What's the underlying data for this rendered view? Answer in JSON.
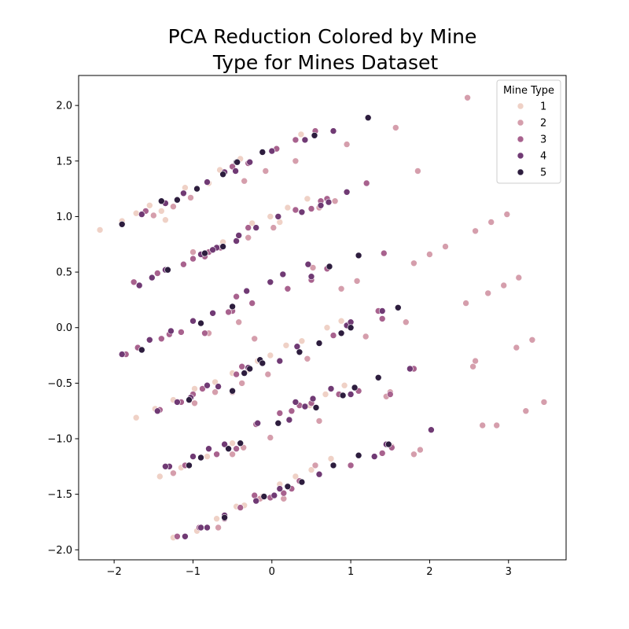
{
  "chart_data": {
    "type": "scatter",
    "title_lines": [
      "PCA Reduction Colored by Mine",
      "Type for Mines Dataset"
    ],
    "xlabel": "",
    "ylabel": "",
    "xlim": [
      -2.45,
      3.73
    ],
    "ylim": [
      -2.09,
      2.27
    ],
    "x_ticks": [
      -2,
      -1,
      0,
      1,
      2,
      3
    ],
    "y_ticks": [
      -2.0,
      -1.5,
      -1.0,
      -0.5,
      0.0,
      0.5,
      1.0,
      1.5,
      2.0
    ],
    "grid": false,
    "legend": {
      "title": "Mine Type",
      "placement": "top-right",
      "entries": [
        "1",
        "2",
        "3",
        "4",
        "5"
      ]
    },
    "colors": {
      "1": "#efd1c6",
      "2": "#d59eac",
      "3": "#a8628e",
      "4": "#703a74",
      "5": "#2d1d3e"
    },
    "series": [
      {
        "name": "1",
        "points": [
          [
            -2.18,
            0.88
          ],
          [
            -1.9,
            0.96
          ],
          [
            -1.72,
            1.03
          ],
          [
            -1.55,
            1.1
          ],
          [
            -1.4,
            1.05
          ],
          [
            -1.1,
            1.26
          ],
          [
            -0.8,
            1.3
          ],
          [
            -0.66,
            1.42
          ],
          [
            -0.4,
            1.52
          ],
          [
            -0.12,
            1.58
          ],
          [
            0.37,
            1.74
          ],
          [
            -0.62,
            0.77
          ],
          [
            -0.25,
            0.94
          ],
          [
            -0.02,
            1.0
          ],
          [
            0.2,
            1.08
          ],
          [
            0.45,
            1.16
          ],
          [
            -1.72,
            -0.81
          ],
          [
            -1.48,
            -0.73
          ],
          [
            -1.25,
            -0.65
          ],
          [
            -0.98,
            -0.55
          ],
          [
            -0.72,
            -0.49
          ],
          [
            -0.5,
            -0.41
          ],
          [
            -0.18,
            -0.3
          ],
          [
            -0.02,
            -0.25
          ],
          [
            0.18,
            -0.16
          ],
          [
            0.38,
            -0.12
          ],
          [
            0.7,
            0.0
          ],
          [
            0.88,
            0.06
          ],
          [
            0.48,
            -0.7
          ],
          [
            0.68,
            -0.6
          ],
          [
            0.92,
            -0.52
          ],
          [
            -1.42,
            -1.34
          ],
          [
            -1.15,
            -1.26
          ],
          [
            -0.82,
            -1.16
          ],
          [
            -0.56,
            -1.08
          ],
          [
            -0.5,
            -1.04
          ],
          [
            0.1,
            -1.41
          ],
          [
            0.3,
            -1.34
          ],
          [
            0.5,
            -1.28
          ],
          [
            0.75,
            -1.18
          ],
          [
            -1.25,
            -1.89
          ],
          [
            -0.95,
            -1.83
          ],
          [
            -0.7,
            -1.72
          ],
          [
            -0.45,
            -1.61
          ],
          [
            -0.12,
            -1.52
          ],
          [
            -0.35,
            -1.6
          ],
          [
            0.1,
            0.95
          ],
          [
            -1.35,
            0.97
          ],
          [
            -0.3,
            -0.38
          ]
        ]
      },
      {
        "name": "2",
        "points": [
          [
            -1.5,
            1.01
          ],
          [
            -1.25,
            1.09
          ],
          [
            -1.03,
            1.17
          ],
          [
            -0.35,
            1.32
          ],
          [
            -0.08,
            1.41
          ],
          [
            0.3,
            1.5
          ],
          [
            0.95,
            1.65
          ],
          [
            1.57,
            1.8
          ],
          [
            1.85,
            1.41
          ],
          [
            2.48,
            2.07
          ],
          [
            -0.45,
            0.78
          ],
          [
            -0.3,
            0.81
          ],
          [
            0.02,
            0.9
          ],
          [
            0.6,
            1.08
          ],
          [
            0.8,
            1.14
          ],
          [
            0.52,
            0.54
          ],
          [
            0.88,
            0.35
          ],
          [
            1.08,
            0.42
          ],
          [
            1.8,
            0.58
          ],
          [
            2.0,
            0.66
          ],
          [
            2.2,
            0.73
          ],
          [
            2.58,
            0.87
          ],
          [
            2.78,
            0.95
          ],
          [
            2.98,
            1.02
          ],
          [
            1.19,
            -0.08
          ],
          [
            1.7,
            0.05
          ],
          [
            2.46,
            0.22
          ],
          [
            2.74,
            0.31
          ],
          [
            2.94,
            0.38
          ],
          [
            3.13,
            0.45
          ],
          [
            -0.42,
            0.05
          ],
          [
            -0.22,
            -0.1
          ],
          [
            -0.05,
            -0.42
          ],
          [
            0.45,
            -0.28
          ],
          [
            -1.0,
            0.68
          ],
          [
            -0.8,
            -0.05
          ],
          [
            -0.5,
            -0.58
          ],
          [
            -0.38,
            -0.5
          ],
          [
            -0.72,
            -0.58
          ],
          [
            -0.98,
            -0.68
          ],
          [
            1.45,
            -0.62
          ],
          [
            1.5,
            -0.58
          ],
          [
            2.55,
            -0.35
          ],
          [
            2.58,
            -0.3
          ],
          [
            3.1,
            -0.18
          ],
          [
            3.3,
            -0.11
          ],
          [
            3.45,
            -0.67
          ],
          [
            3.22,
            -0.75
          ],
          [
            2.67,
            -0.88
          ],
          [
            2.85,
            -0.88
          ],
          [
            0.6,
            -0.84
          ],
          [
            -0.36,
            -1.08
          ],
          [
            -0.02,
            -0.99
          ],
          [
            -1.25,
            -1.31
          ],
          [
            -0.5,
            -1.14
          ],
          [
            0.55,
            -1.24
          ],
          [
            1.8,
            -1.14
          ],
          [
            1.88,
            -1.1
          ],
          [
            1.52,
            -1.07
          ],
          [
            -0.15,
            -1.54
          ],
          [
            0.15,
            -1.54
          ],
          [
            -0.68,
            -1.8
          ]
        ]
      },
      {
        "name": "3",
        "points": [
          [
            -1.6,
            1.05
          ],
          [
            -0.5,
            1.45
          ],
          [
            -0.3,
            1.48
          ],
          [
            0.06,
            1.61
          ],
          [
            0.3,
            1.69
          ],
          [
            0.55,
            1.77
          ],
          [
            1.2,
            1.3
          ],
          [
            -1.0,
            0.62
          ],
          [
            -0.65,
            0.72
          ],
          [
            -0.3,
            0.9
          ],
          [
            0.3,
            1.06
          ],
          [
            0.5,
            1.07
          ],
          [
            0.7,
            1.16
          ],
          [
            0.62,
            1.14
          ],
          [
            -1.75,
            0.41
          ],
          [
            -1.45,
            0.49
          ],
          [
            -1.12,
            0.57
          ],
          [
            -0.85,
            0.64
          ],
          [
            -0.8,
            0.68
          ],
          [
            -0.65,
            0.72
          ],
          [
            -1.15,
            -0.04
          ],
          [
            -1.3,
            -0.06
          ],
          [
            -0.85,
            -0.05
          ],
          [
            -0.5,
            0.15
          ],
          [
            -0.25,
            0.22
          ],
          [
            -0.45,
            0.28
          ],
          [
            0.2,
            0.35
          ],
          [
            0.5,
            0.43
          ],
          [
            0.7,
            0.53
          ],
          [
            0.78,
            -0.07
          ],
          [
            1.4,
            0.08
          ],
          [
            1.42,
            0.67
          ],
          [
            1.35,
            0.15
          ],
          [
            -1.85,
            -0.24
          ],
          [
            -1.7,
            -0.18
          ],
          [
            -1.4,
            -0.1
          ],
          [
            -0.55,
            0.14
          ],
          [
            -0.38,
            -0.35
          ],
          [
            0.85,
            -0.6
          ],
          [
            1.1,
            -0.57
          ],
          [
            1.5,
            -0.6
          ],
          [
            1.8,
            -0.37
          ],
          [
            0.35,
            -0.7
          ],
          [
            -1.42,
            -0.74
          ],
          [
            -1.15,
            -0.67
          ],
          [
            -0.88,
            -0.55
          ],
          [
            -1.0,
            -0.6
          ],
          [
            -0.45,
            -0.42
          ],
          [
            0.25,
            -0.75
          ],
          [
            -1.1,
            -1.24
          ],
          [
            -0.7,
            -1.14
          ],
          [
            -0.45,
            -1.09
          ],
          [
            -0.2,
            -0.87
          ],
          [
            0.1,
            -0.77
          ],
          [
            0.5,
            -0.68
          ],
          [
            -0.4,
            -1.62
          ],
          [
            -0.22,
            -1.51
          ],
          [
            -0.02,
            -1.53
          ],
          [
            0.15,
            -1.49
          ],
          [
            0.25,
            -1.45
          ],
          [
            0.35,
            -1.38
          ],
          [
            1.4,
            -1.13
          ],
          [
            1.52,
            -1.08
          ],
          [
            1.0,
            -1.24
          ],
          [
            -1.2,
            -1.88
          ],
          [
            -0.92,
            -1.8
          ],
          [
            -0.6,
            -1.72
          ]
        ]
      },
      {
        "name": "4",
        "points": [
          [
            -1.65,
            1.02
          ],
          [
            -1.35,
            1.12
          ],
          [
            -1.12,
            1.21
          ],
          [
            -0.82,
            1.31
          ],
          [
            -0.6,
            1.4
          ],
          [
            -0.28,
            1.49
          ],
          [
            0.0,
            1.59
          ],
          [
            0.42,
            1.69
          ],
          [
            0.78,
            1.77
          ],
          [
            -0.46,
            1.41
          ],
          [
            -1.68,
            0.38
          ],
          [
            -1.52,
            0.45
          ],
          [
            -1.35,
            0.52
          ],
          [
            -0.9,
            0.66
          ],
          [
            -0.7,
            0.72
          ],
          [
            -0.45,
            0.78
          ],
          [
            -0.42,
            0.83
          ],
          [
            -0.2,
            0.9
          ],
          [
            0.08,
            1.0
          ],
          [
            0.38,
            1.04
          ],
          [
            0.62,
            1.1
          ],
          [
            0.72,
            1.13
          ],
          [
            0.95,
            1.22
          ],
          [
            -0.75,
            0.7
          ],
          [
            -1.9,
            -0.24
          ],
          [
            -1.55,
            -0.11
          ],
          [
            -1.28,
            -0.03
          ],
          [
            -1.0,
            0.06
          ],
          [
            -0.75,
            0.13
          ],
          [
            -0.32,
            0.33
          ],
          [
            -0.02,
            0.41
          ],
          [
            0.14,
            0.48
          ],
          [
            0.46,
            0.57
          ],
          [
            0.5,
            0.46
          ],
          [
            1.4,
            0.15
          ],
          [
            0.95,
            0.02
          ],
          [
            1.0,
            0.05
          ],
          [
            0.32,
            -0.17
          ],
          [
            0.1,
            -0.3
          ],
          [
            -0.68,
            -0.53
          ],
          [
            -0.82,
            -0.52
          ],
          [
            -1.03,
            -0.63
          ],
          [
            -1.2,
            -0.67
          ],
          [
            -1.45,
            -0.75
          ],
          [
            -0.3,
            -0.36
          ],
          [
            0.52,
            -0.64
          ],
          [
            0.75,
            -0.55
          ],
          [
            1.0,
            -0.6
          ],
          [
            -0.18,
            -0.86
          ],
          [
            0.3,
            -0.67
          ],
          [
            0.42,
            -0.71
          ],
          [
            -1.3,
            -1.25
          ],
          [
            -1.0,
            -1.16
          ],
          [
            -0.8,
            -1.09
          ],
          [
            -0.6,
            -1.05
          ],
          [
            0.22,
            -0.83
          ],
          [
            -1.35,
            -1.25
          ],
          [
            -0.2,
            -1.56
          ],
          [
            0.1,
            -1.45
          ],
          [
            0.6,
            -1.32
          ],
          [
            2.02,
            -0.92
          ],
          [
            1.3,
            -1.16
          ],
          [
            1.45,
            -1.05
          ],
          [
            1.75,
            -0.37
          ],
          [
            -0.9,
            -1.8
          ],
          [
            -0.82,
            -1.8
          ],
          [
            -0.6,
            -1.69
          ],
          [
            -1.1,
            -1.88
          ],
          [
            0.03,
            -1.51
          ]
        ]
      },
      {
        "name": "5",
        "points": [
          [
            -1.9,
            0.93
          ],
          [
            -1.4,
            1.14
          ],
          [
            -1.2,
            1.15
          ],
          [
            -0.95,
            1.25
          ],
          [
            -0.62,
            1.38
          ],
          [
            -0.45,
            1.49
          ],
          [
            -0.12,
            1.58
          ],
          [
            0.54,
            1.73
          ],
          [
            1.22,
            1.89
          ],
          [
            -0.44,
            1.49
          ],
          [
            -1.32,
            0.52
          ],
          [
            -0.85,
            0.67
          ],
          [
            -0.62,
            0.73
          ],
          [
            0.73,
            0.55
          ],
          [
            1.1,
            0.65
          ],
          [
            1.6,
            0.18
          ],
          [
            -0.9,
            0.04
          ],
          [
            -0.5,
            0.19
          ],
          [
            -1.65,
            -0.2
          ],
          [
            -0.15,
            -0.29
          ],
          [
            -0.12,
            -0.32
          ],
          [
            0.35,
            -0.22
          ],
          [
            0.6,
            -0.14
          ],
          [
            0.88,
            -0.05
          ],
          [
            1.0,
            0.0
          ],
          [
            0.9,
            -0.61
          ],
          [
            1.05,
            -0.54
          ],
          [
            1.35,
            -0.45
          ],
          [
            -0.35,
            -0.41
          ],
          [
            -0.28,
            -0.37
          ],
          [
            -1.05,
            -0.65
          ],
          [
            -0.5,
            -0.57
          ],
          [
            0.08,
            -0.86
          ],
          [
            0.56,
            -0.72
          ],
          [
            -0.9,
            -1.17
          ],
          [
            -0.55,
            -1.09
          ],
          [
            -0.4,
            -1.04
          ],
          [
            -1.05,
            -1.24
          ],
          [
            0.78,
            -1.24
          ],
          [
            1.1,
            -1.15
          ],
          [
            1.48,
            -1.05
          ],
          [
            -0.1,
            -1.52
          ],
          [
            -0.6,
            -1.71
          ],
          [
            0.38,
            -1.39
          ],
          [
            0.2,
            -1.43
          ]
        ]
      }
    ]
  }
}
